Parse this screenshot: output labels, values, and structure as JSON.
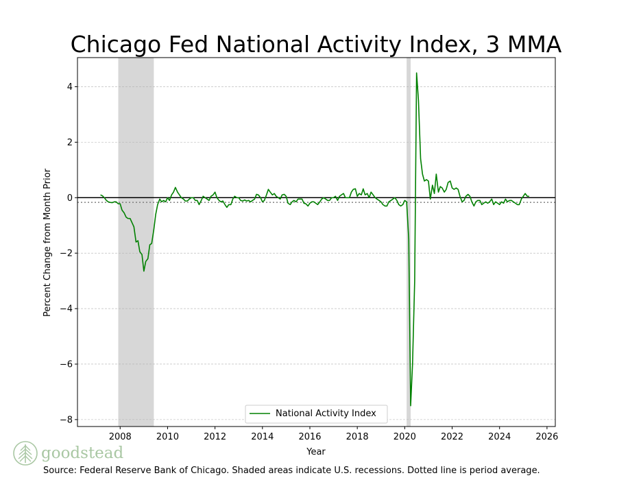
{
  "brand": {
    "name": "goodstead",
    "icon": "tree-icon",
    "color": "#a9c7a3"
  },
  "source_note": "Source: Federal Reserve Bank of Chicago. Shaded areas indicate U.S. recessions. Dotted line is period average.",
  "chart_data": {
    "type": "line",
    "title": "Chicago Fed National Activity Index, 3 MMA",
    "xlabel": "Year",
    "ylabel": "Percent Change from Month Prior",
    "xlim": [
      2006.2,
      2026.35
    ],
    "ylim": [
      -8.25,
      5.05
    ],
    "x_ticks": [
      2008,
      2010,
      2012,
      2014,
      2016,
      2018,
      2020,
      2022,
      2024,
      2026
    ],
    "y_ticks": [
      4,
      2,
      0,
      -2,
      -4,
      -6,
      -8
    ],
    "grid": "horizontal dashed",
    "zero_line": 0,
    "average_line": -0.17,
    "recessions": [
      {
        "start": 2007.92,
        "end": 2009.42
      },
      {
        "start": 2020.08,
        "end": 2020.25
      }
    ],
    "legend": {
      "position": "lower-center",
      "entries": [
        "National Activity Index"
      ]
    },
    "series": [
      {
        "name": "National Activity Index",
        "color": "#008000",
        "points": [
          [
            2007.17,
            0.1
          ],
          [
            2007.25,
            0.07
          ],
          [
            2007.33,
            0.0
          ],
          [
            2007.42,
            -0.1
          ],
          [
            2007.5,
            -0.15
          ],
          [
            2007.58,
            -0.17
          ],
          [
            2007.67,
            -0.18
          ],
          [
            2007.75,
            -0.15
          ],
          [
            2007.83,
            -0.15
          ],
          [
            2007.92,
            -0.22
          ],
          [
            2008.0,
            -0.22
          ],
          [
            2008.08,
            -0.45
          ],
          [
            2008.17,
            -0.55
          ],
          [
            2008.25,
            -0.7
          ],
          [
            2008.33,
            -0.75
          ],
          [
            2008.42,
            -0.75
          ],
          [
            2008.5,
            -0.9
          ],
          [
            2008.58,
            -1.05
          ],
          [
            2008.67,
            -1.6
          ],
          [
            2008.75,
            -1.55
          ],
          [
            2008.83,
            -1.95
          ],
          [
            2008.92,
            -2.05
          ],
          [
            2009.0,
            -2.65
          ],
          [
            2009.08,
            -2.3
          ],
          [
            2009.17,
            -2.2
          ],
          [
            2009.25,
            -1.7
          ],
          [
            2009.33,
            -1.65
          ],
          [
            2009.42,
            -1.15
          ],
          [
            2009.5,
            -0.6
          ],
          [
            2009.58,
            -0.25
          ],
          [
            2009.67,
            -0.05
          ],
          [
            2009.75,
            -0.15
          ],
          [
            2009.83,
            -0.1
          ],
          [
            2009.92,
            -0.15
          ],
          [
            2010.0,
            0.0
          ],
          [
            2010.08,
            -0.1
          ],
          [
            2010.17,
            0.1
          ],
          [
            2010.25,
            0.2
          ],
          [
            2010.33,
            0.37
          ],
          [
            2010.42,
            0.2
          ],
          [
            2010.5,
            0.1
          ],
          [
            2010.58,
            0.0
          ],
          [
            2010.67,
            -0.05
          ],
          [
            2010.75,
            -0.12
          ],
          [
            2010.83,
            -0.12
          ],
          [
            2010.92,
            -0.05
          ],
          [
            2011.0,
            0.0
          ],
          [
            2011.08,
            0.0
          ],
          [
            2011.17,
            -0.1
          ],
          [
            2011.25,
            -0.1
          ],
          [
            2011.33,
            -0.25
          ],
          [
            2011.42,
            -0.1
          ],
          [
            2011.5,
            0.05
          ],
          [
            2011.58,
            0.0
          ],
          [
            2011.67,
            -0.05
          ],
          [
            2011.75,
            -0.1
          ],
          [
            2011.83,
            0.05
          ],
          [
            2011.92,
            0.1
          ],
          [
            2012.0,
            0.2
          ],
          [
            2012.08,
            0.0
          ],
          [
            2012.17,
            -0.1
          ],
          [
            2012.25,
            -0.15
          ],
          [
            2012.33,
            -0.12
          ],
          [
            2012.42,
            -0.25
          ],
          [
            2012.5,
            -0.35
          ],
          [
            2012.58,
            -0.25
          ],
          [
            2012.67,
            -0.25
          ],
          [
            2012.75,
            -0.05
          ],
          [
            2012.83,
            0.05
          ],
          [
            2012.92,
            0.0
          ],
          [
            2013.0,
            0.0
          ],
          [
            2013.08,
            -0.1
          ],
          [
            2013.17,
            -0.12
          ],
          [
            2013.25,
            -0.08
          ],
          [
            2013.33,
            -0.12
          ],
          [
            2013.42,
            -0.1
          ],
          [
            2013.5,
            -0.15
          ],
          [
            2013.58,
            -0.1
          ],
          [
            2013.67,
            -0.05
          ],
          [
            2013.75,
            0.12
          ],
          [
            2013.83,
            0.1
          ],
          [
            2013.92,
            0.0
          ],
          [
            2014.0,
            -0.15
          ],
          [
            2014.08,
            -0.1
          ],
          [
            2014.17,
            0.1
          ],
          [
            2014.25,
            0.3
          ],
          [
            2014.33,
            0.2
          ],
          [
            2014.42,
            0.1
          ],
          [
            2014.5,
            0.15
          ],
          [
            2014.58,
            0.05
          ],
          [
            2014.67,
            0.0
          ],
          [
            2014.75,
            -0.05
          ],
          [
            2014.83,
            0.1
          ],
          [
            2014.92,
            0.12
          ],
          [
            2015.0,
            0.05
          ],
          [
            2015.08,
            -0.2
          ],
          [
            2015.17,
            -0.25
          ],
          [
            2015.25,
            -0.15
          ],
          [
            2015.33,
            -0.1
          ],
          [
            2015.42,
            -0.15
          ],
          [
            2015.5,
            -0.05
          ],
          [
            2015.58,
            -0.05
          ],
          [
            2015.67,
            -0.05
          ],
          [
            2015.75,
            -0.2
          ],
          [
            2015.83,
            -0.22
          ],
          [
            2015.92,
            -0.3
          ],
          [
            2016.0,
            -0.2
          ],
          [
            2016.08,
            -0.15
          ],
          [
            2016.17,
            -0.15
          ],
          [
            2016.25,
            -0.2
          ],
          [
            2016.33,
            -0.25
          ],
          [
            2016.42,
            -0.15
          ],
          [
            2016.5,
            -0.05
          ],
          [
            2016.58,
            0.0
          ],
          [
            2016.67,
            -0.05
          ],
          [
            2016.75,
            -0.1
          ],
          [
            2016.83,
            -0.1
          ],
          [
            2016.92,
            0.0
          ],
          [
            2017.0,
            0.0
          ],
          [
            2017.08,
            0.05
          ],
          [
            2017.17,
            -0.1
          ],
          [
            2017.25,
            0.05
          ],
          [
            2017.33,
            0.1
          ],
          [
            2017.42,
            0.15
          ],
          [
            2017.5,
            0.0
          ],
          [
            2017.58,
            0.0
          ],
          [
            2017.67,
            0.0
          ],
          [
            2017.75,
            0.2
          ],
          [
            2017.83,
            0.3
          ],
          [
            2017.92,
            0.32
          ],
          [
            2018.0,
            0.05
          ],
          [
            2018.08,
            0.15
          ],
          [
            2018.17,
            0.1
          ],
          [
            2018.25,
            0.32
          ],
          [
            2018.33,
            0.1
          ],
          [
            2018.42,
            0.15
          ],
          [
            2018.5,
            0.0
          ],
          [
            2018.58,
            0.2
          ],
          [
            2018.67,
            0.1
          ],
          [
            2018.75,
            0.0
          ],
          [
            2018.83,
            -0.05
          ],
          [
            2018.92,
            -0.1
          ],
          [
            2019.0,
            -0.15
          ],
          [
            2019.08,
            -0.25
          ],
          [
            2019.17,
            -0.3
          ],
          [
            2019.25,
            -0.3
          ],
          [
            2019.33,
            -0.15
          ],
          [
            2019.42,
            -0.1
          ],
          [
            2019.5,
            -0.05
          ],
          [
            2019.58,
            0.0
          ],
          [
            2019.67,
            -0.1
          ],
          [
            2019.75,
            -0.25
          ],
          [
            2019.83,
            -0.3
          ],
          [
            2019.92,
            -0.25
          ],
          [
            2020.0,
            -0.1
          ],
          [
            2020.08,
            -0.15
          ],
          [
            2020.17,
            -1.5
          ],
          [
            2020.25,
            -7.5
          ],
          [
            2020.33,
            -6.0
          ],
          [
            2020.42,
            -3.0
          ],
          [
            2020.5,
            4.5
          ],
          [
            2020.58,
            3.5
          ],
          [
            2020.67,
            1.4
          ],
          [
            2020.75,
            0.85
          ],
          [
            2020.83,
            0.6
          ],
          [
            2020.92,
            0.65
          ],
          [
            2021.0,
            0.6
          ],
          [
            2021.08,
            -0.05
          ],
          [
            2021.17,
            0.45
          ],
          [
            2021.25,
            0.15
          ],
          [
            2021.33,
            0.85
          ],
          [
            2021.42,
            0.2
          ],
          [
            2021.5,
            0.4
          ],
          [
            2021.58,
            0.35
          ],
          [
            2021.67,
            0.2
          ],
          [
            2021.75,
            0.3
          ],
          [
            2021.83,
            0.55
          ],
          [
            2021.92,
            0.6
          ],
          [
            2022.0,
            0.35
          ],
          [
            2022.08,
            0.3
          ],
          [
            2022.17,
            0.35
          ],
          [
            2022.25,
            0.3
          ],
          [
            2022.33,
            0.05
          ],
          [
            2022.42,
            -0.15
          ],
          [
            2022.5,
            -0.1
          ],
          [
            2022.58,
            0.05
          ],
          [
            2022.67,
            0.12
          ],
          [
            2022.75,
            0.05
          ],
          [
            2022.83,
            -0.15
          ],
          [
            2022.92,
            -0.3
          ],
          [
            2023.0,
            -0.15
          ],
          [
            2023.08,
            -0.1
          ],
          [
            2023.17,
            -0.1
          ],
          [
            2023.25,
            -0.25
          ],
          [
            2023.33,
            -0.2
          ],
          [
            2023.42,
            -0.15
          ],
          [
            2023.5,
            -0.2
          ],
          [
            2023.58,
            -0.15
          ],
          [
            2023.67,
            -0.05
          ],
          [
            2023.75,
            -0.25
          ],
          [
            2023.83,
            -0.15
          ],
          [
            2023.92,
            -0.2
          ],
          [
            2024.0,
            -0.25
          ],
          [
            2024.08,
            -0.15
          ],
          [
            2024.17,
            -0.2
          ],
          [
            2024.25,
            -0.05
          ],
          [
            2024.33,
            -0.15
          ],
          [
            2024.42,
            -0.1
          ],
          [
            2024.5,
            -0.1
          ],
          [
            2024.58,
            -0.15
          ],
          [
            2024.67,
            -0.2
          ],
          [
            2024.75,
            -0.25
          ],
          [
            2024.83,
            -0.25
          ],
          [
            2024.92,
            -0.05
          ],
          [
            2025.0,
            0.05
          ],
          [
            2025.08,
            0.15
          ],
          [
            2025.17,
            0.05
          ],
          [
            2025.25,
            0.05
          ]
        ]
      }
    ]
  }
}
